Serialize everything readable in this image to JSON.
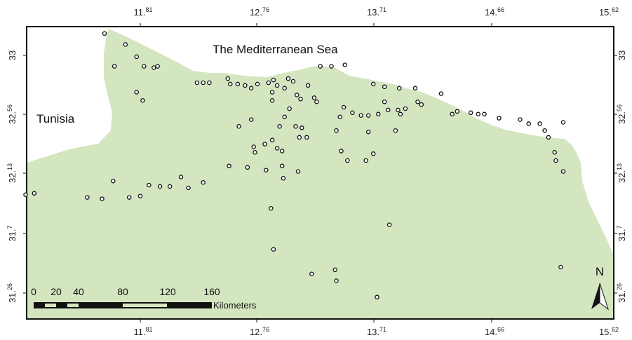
{
  "map": {
    "labels": {
      "sea": "The Mediterranean Sea",
      "country": "Tunisia"
    },
    "colors": {
      "land": "#d4e6bf",
      "frame": "#111111",
      "point": "#111111"
    },
    "longitude_ticks": [
      {
        "base": "11.",
        "sup": "81"
      },
      {
        "base": "12.",
        "sup": "76"
      },
      {
        "base": "13.",
        "sup": "71"
      },
      {
        "base": "14.",
        "sup": "66"
      },
      {
        "base": "15.",
        "sup": "62"
      }
    ],
    "latitude_ticks": [
      {
        "base": "33",
        "sup": ""
      },
      {
        "base": "32.",
        "sup": "56"
      },
      {
        "base": "32.",
        "sup": "13"
      },
      {
        "base": "31.",
        "sup": "7"
      },
      {
        "base": "31.",
        "sup": "26"
      }
    ],
    "scale_bar": {
      "numbers": [
        "0",
        "20",
        "40",
        "80",
        "120",
        "160"
      ],
      "unit": "Kilometers"
    },
    "north_arrow": {
      "label": "N",
      "icon": "north-arrow-icon"
    },
    "stations_lonlat": [
      [
        10.88,
        31.98
      ],
      [
        10.95,
        31.99
      ],
      [
        11.38,
        31.96
      ],
      [
        11.5,
        31.95
      ],
      [
        11.59,
        32.08
      ],
      [
        11.72,
        31.96
      ],
      [
        11.81,
        31.97
      ],
      [
        11.88,
        32.05
      ],
      [
        11.97,
        32.04
      ],
      [
        12.05,
        32.04
      ],
      [
        12.14,
        32.11
      ],
      [
        12.2,
        32.03
      ],
      [
        12.32,
        32.07
      ],
      [
        12.53,
        32.19
      ],
      [
        12.68,
        32.18
      ],
      [
        12.83,
        32.16
      ],
      [
        12.96,
        32.19
      ],
      [
        12.97,
        32.1
      ],
      [
        13.09,
        32.15
      ],
      [
        13.49,
        32.23
      ],
      [
        13.64,
        32.23
      ],
      [
        11.52,
        33.16
      ],
      [
        11.69,
        33.08
      ],
      [
        11.6,
        32.92
      ],
      [
        11.78,
        32.99
      ],
      [
        11.84,
        32.92
      ],
      [
        11.83,
        32.67
      ],
      [
        11.78,
        32.73
      ],
      [
        11.92,
        32.91
      ],
      [
        11.95,
        32.92
      ],
      [
        12.27,
        32.8
      ],
      [
        12.32,
        32.8
      ],
      [
        12.37,
        32.8
      ],
      [
        12.52,
        32.83
      ],
      [
        12.54,
        32.79
      ],
      [
        12.66,
        32.78
      ],
      [
        12.71,
        32.76
      ],
      [
        12.6,
        32.79
      ],
      [
        12.76,
        32.79
      ],
      [
        12.85,
        32.8
      ],
      [
        12.89,
        32.82
      ],
      [
        12.92,
        32.78
      ],
      [
        12.98,
        32.76
      ],
      [
        13.01,
        32.83
      ],
      [
        13.05,
        32.81
      ],
      [
        13.08,
        32.71
      ],
      [
        13.11,
        32.68
      ],
      [
        12.88,
        32.73
      ],
      [
        13.17,
        32.78
      ],
      [
        13.24,
        32.66
      ],
      [
        13.22,
        32.69
      ],
      [
        13.27,
        32.92
      ],
      [
        13.36,
        32.92
      ],
      [
        13.47,
        32.93
      ],
      [
        13.7,
        32.79
      ],
      [
        13.79,
        32.77
      ],
      [
        13.91,
        32.76
      ],
      [
        14.04,
        32.76
      ],
      [
        14.25,
        32.72
      ],
      [
        14.06,
        32.66
      ],
      [
        14.09,
        32.64
      ],
      [
        14.34,
        32.57
      ],
      [
        14.38,
        32.59
      ],
      [
        14.49,
        32.58
      ],
      [
        14.55,
        32.57
      ],
      [
        14.6,
        32.57
      ],
      [
        14.72,
        32.54
      ],
      [
        14.89,
        32.53
      ],
      [
        15.05,
        32.5
      ],
      [
        15.24,
        32.51
      ],
      [
        12.88,
        32.67
      ],
      [
        13.02,
        32.61
      ],
      [
        12.98,
        32.55
      ],
      [
        12.71,
        32.53
      ],
      [
        12.61,
        32.48
      ],
      [
        12.94,
        32.48
      ],
      [
        13.07,
        32.48
      ],
      [
        13.12,
        32.47
      ],
      [
        12.88,
        32.38
      ],
      [
        13.16,
        32.4
      ],
      [
        12.92,
        32.32
      ],
      [
        12.96,
        32.3
      ],
      [
        13.4,
        32.45
      ],
      [
        13.43,
        32.55
      ],
      [
        13.46,
        32.62
      ],
      [
        13.53,
        32.58
      ],
      [
        13.6,
        32.56
      ],
      [
        13.66,
        32.56
      ],
      [
        13.79,
        32.66
      ],
      [
        13.82,
        32.6
      ],
      [
        13.92,
        32.57
      ],
      [
        13.88,
        32.45
      ],
      [
        13.9,
        32.6
      ],
      [
        13.96,
        32.61
      ],
      [
        13.74,
        32.57
      ],
      [
        13.66,
        32.44
      ],
      [
        13.7,
        32.28
      ],
      [
        13.44,
        32.3
      ],
      [
        13.1,
        32.4
      ],
      [
        12.82,
        32.35
      ],
      [
        12.73,
        32.33
      ],
      [
        12.74,
        32.29
      ],
      [
        15.12,
        32.4
      ],
      [
        15.17,
        32.29
      ],
      [
        15.18,
        32.23
      ],
      [
        15.24,
        32.15
      ],
      [
        15.09,
        32.45
      ],
      [
        14.96,
        32.5
      ],
      [
        12.89,
        31.58
      ],
      [
        12.87,
        31.88
      ],
      [
        13.39,
        31.43
      ],
      [
        13.2,
        31.4
      ],
      [
        13.4,
        31.35
      ],
      [
        13.83,
        31.76
      ],
      [
        13.73,
        31.23
      ],
      [
        15.22,
        31.45
      ]
    ]
  }
}
